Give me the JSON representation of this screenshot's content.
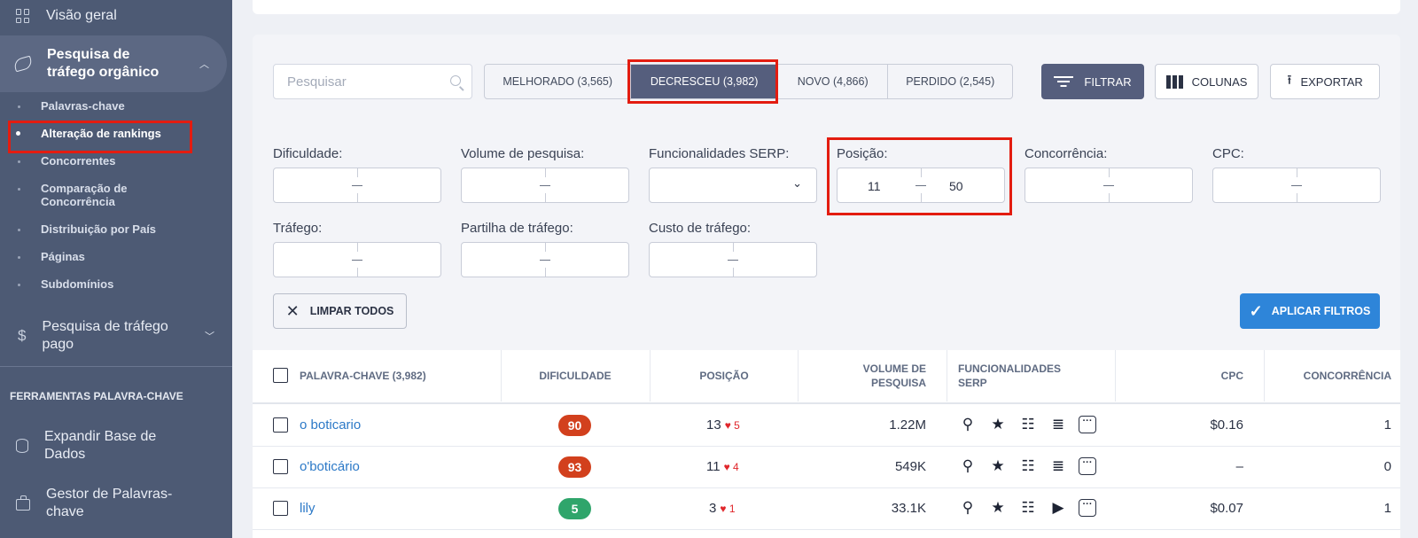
{
  "sidebar": {
    "overview": "Visão geral",
    "organic": "Pesquisa de tráfego orgânico",
    "sub": [
      "Palavras-chave",
      "Alteração de rankings",
      "Concorrentes",
      "Comparação de Concorrência",
      "Distribuição por País",
      "Páginas",
      "Subdomínios"
    ],
    "paid": "Pesquisa de tráfego pago",
    "tools_title": "FERRAMENTAS PALAVRA-CHAVE",
    "expand": "Expandir Base de Dados",
    "manager": "Gestor de Palavras-chave"
  },
  "toolbar": {
    "search_placeholder": "Pesquisar",
    "tabs": [
      "MELHORADO (3,565)",
      "DECRESCEU (3,982)",
      "NOVO (4,866)",
      "PERDIDO (2,545)"
    ],
    "filter": "FILTRAR",
    "columns": "COLUNAS",
    "export": "EXPORTAR"
  },
  "filters": {
    "difficulty": "Dificuldade:",
    "volume": "Volume de pesquisa:",
    "serp": "Funcionalidades SERP:",
    "position": "Posição:",
    "position_min": "11",
    "position_max": "50",
    "competition": "Concorrência:",
    "cpc": "CPC:",
    "traffic": "Tráfego:",
    "traffic_share": "Partilha de tráfego:",
    "traffic_cost": "Custo de tráfego:",
    "clear": "LIMPAR TODOS",
    "apply": "APLICAR FILTROS"
  },
  "table": {
    "headers": {
      "keyword": "PALAVRA-CHAVE (3,982)",
      "difficulty": "DIFICULDADE",
      "position": "POSIÇÃO",
      "volume": "VOLUME DE PESQUISA",
      "serp": "FUNCIONALIDADES SERP",
      "cpc": "CPC",
      "competition": "CONCORRÊNCIA"
    },
    "rows": [
      {
        "keyword": "o boticario",
        "difficulty": "90",
        "diff_color": "#d2401d",
        "position": "13",
        "delta": "5",
        "volume": "1.22M",
        "serp": [
          "pin",
          "star",
          "table",
          "list",
          "more"
        ],
        "cpc": "$0.16",
        "competition": "1"
      },
      {
        "keyword": "o'boticário",
        "difficulty": "93",
        "diff_color": "#d2401d",
        "position": "11",
        "delta": "4",
        "volume": "549K",
        "serp": [
          "pin",
          "star",
          "table",
          "list",
          "more"
        ],
        "cpc": "–",
        "competition": "0"
      },
      {
        "keyword": "lily",
        "difficulty": "5",
        "diff_color": "#2fa56b",
        "position": "3",
        "delta": "1",
        "volume": "33.1K",
        "serp": [
          "pin",
          "star",
          "table",
          "video",
          "more"
        ],
        "cpc": "$0.07",
        "competition": "1"
      }
    ]
  }
}
